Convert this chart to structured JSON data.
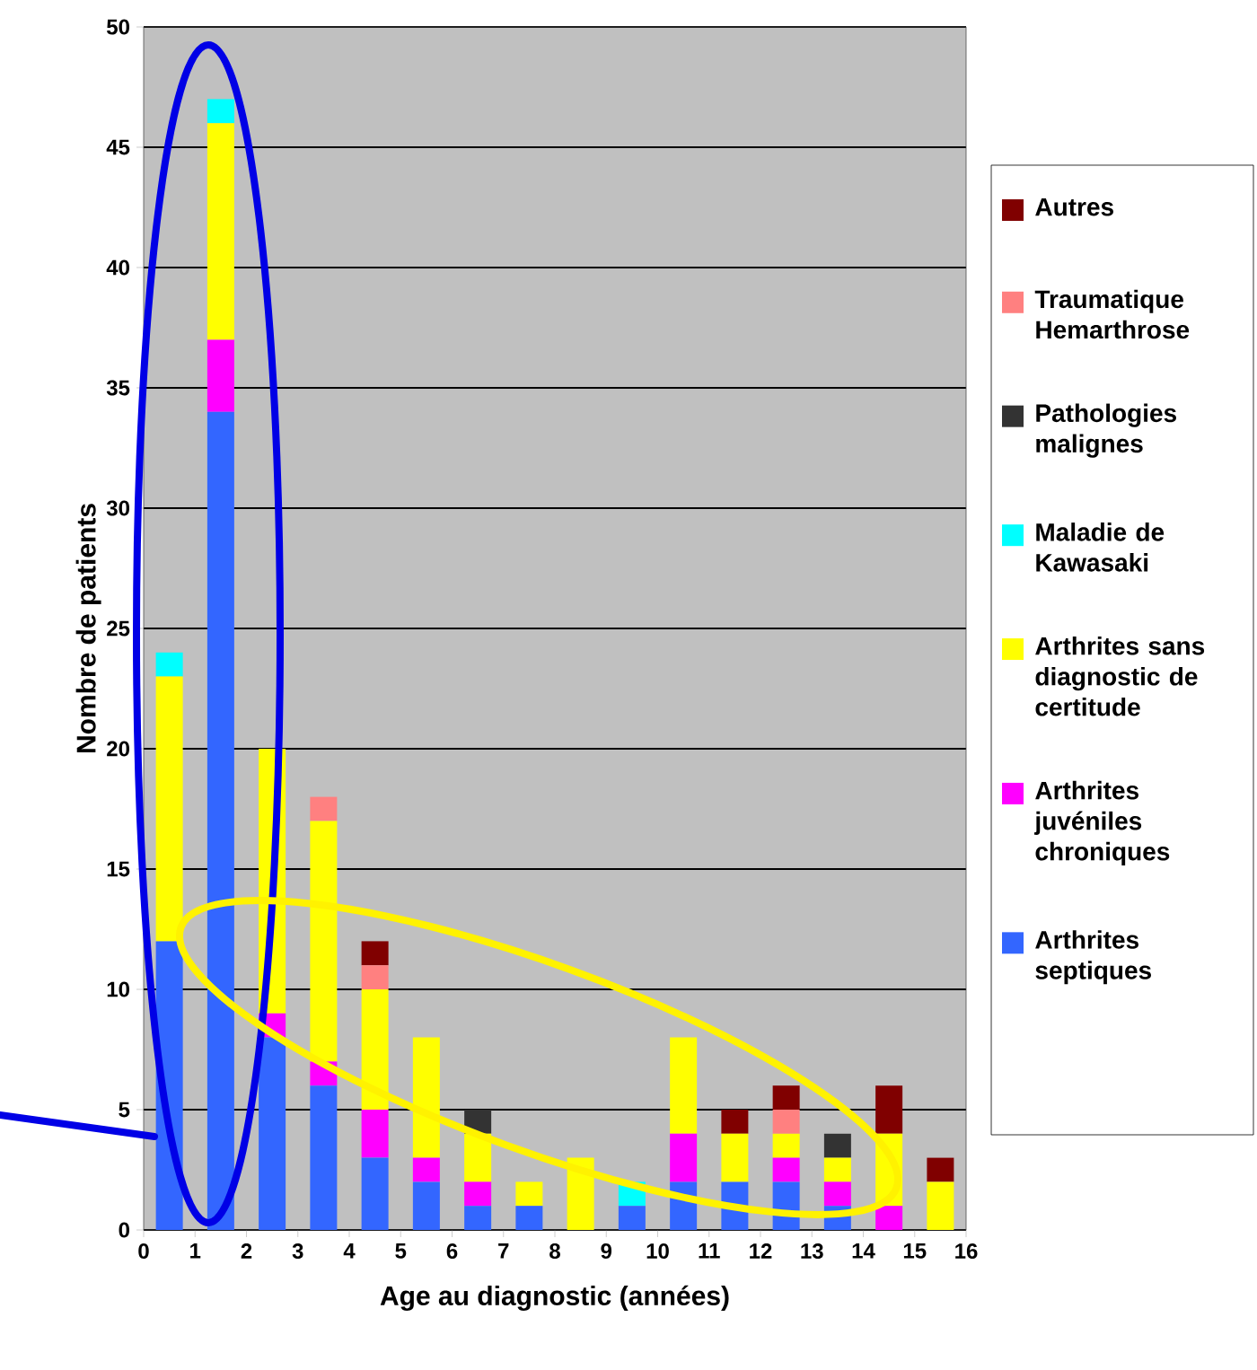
{
  "chart_data": {
    "type": "bar",
    "stacked": true,
    "xlabel": "Age au diagnostic (années)",
    "ylabel": "Nombre de patients",
    "x": [
      0.5,
      1.5,
      2.5,
      3.5,
      4.5,
      5.5,
      6.5,
      7.5,
      8.5,
      9.5,
      10.5,
      11.5,
      12.5,
      13.5,
      14.5,
      15.5
    ],
    "xlim": [
      0,
      16
    ],
    "xticks": [
      0,
      1,
      2,
      3,
      4,
      5,
      6,
      7,
      8,
      9,
      10,
      11,
      12,
      13,
      14,
      15,
      16
    ],
    "ylim": [
      0,
      50
    ],
    "yticks": [
      0,
      5,
      10,
      15,
      20,
      25,
      30,
      35,
      40,
      45,
      50
    ],
    "grid": "y",
    "legend": "right",
    "series": [
      {
        "name": "Arthrites septiques",
        "color": "#3366ff",
        "values": [
          12,
          34,
          8,
          6,
          3,
          2,
          1,
          1,
          0,
          1,
          2,
          2,
          2,
          1,
          0,
          0
        ]
      },
      {
        "name": "Arthrites juvéniles chroniques",
        "color": "#ff00ff",
        "values": [
          0,
          3,
          1,
          1,
          2,
          1,
          1,
          0,
          0,
          0,
          2,
          0,
          1,
          1,
          1,
          0
        ]
      },
      {
        "name": "Arthrites sans diagnostic de certitude",
        "color": "#ffff00",
        "values": [
          11,
          9,
          11,
          10,
          5,
          5,
          2,
          1,
          3,
          0,
          4,
          2,
          1,
          1,
          3,
          2
        ]
      },
      {
        "name": "Maladie de Kawasaki",
        "color": "#00ffff",
        "values": [
          1,
          1,
          0,
          0,
          0,
          0,
          0,
          0,
          0,
          1,
          0,
          0,
          0,
          0,
          0,
          0
        ]
      },
      {
        "name": "Pathologies malignes",
        "color": "#333333",
        "values": [
          0,
          0,
          0,
          0,
          0,
          0,
          1,
          0,
          0,
          0,
          0,
          0,
          0,
          1,
          0,
          0
        ]
      },
      {
        "name": "Traumatique Hemarthrose",
        "color": "#ff8080",
        "values": [
          0,
          0,
          0,
          1,
          1,
          0,
          0,
          0,
          0,
          0,
          0,
          0,
          1,
          0,
          0,
          0
        ]
      },
      {
        "name": "Autres",
        "color": "#800000",
        "values": [
          0,
          0,
          0,
          0,
          1,
          0,
          0,
          0,
          0,
          0,
          0,
          1,
          1,
          0,
          2,
          1
        ]
      }
    ]
  }
}
